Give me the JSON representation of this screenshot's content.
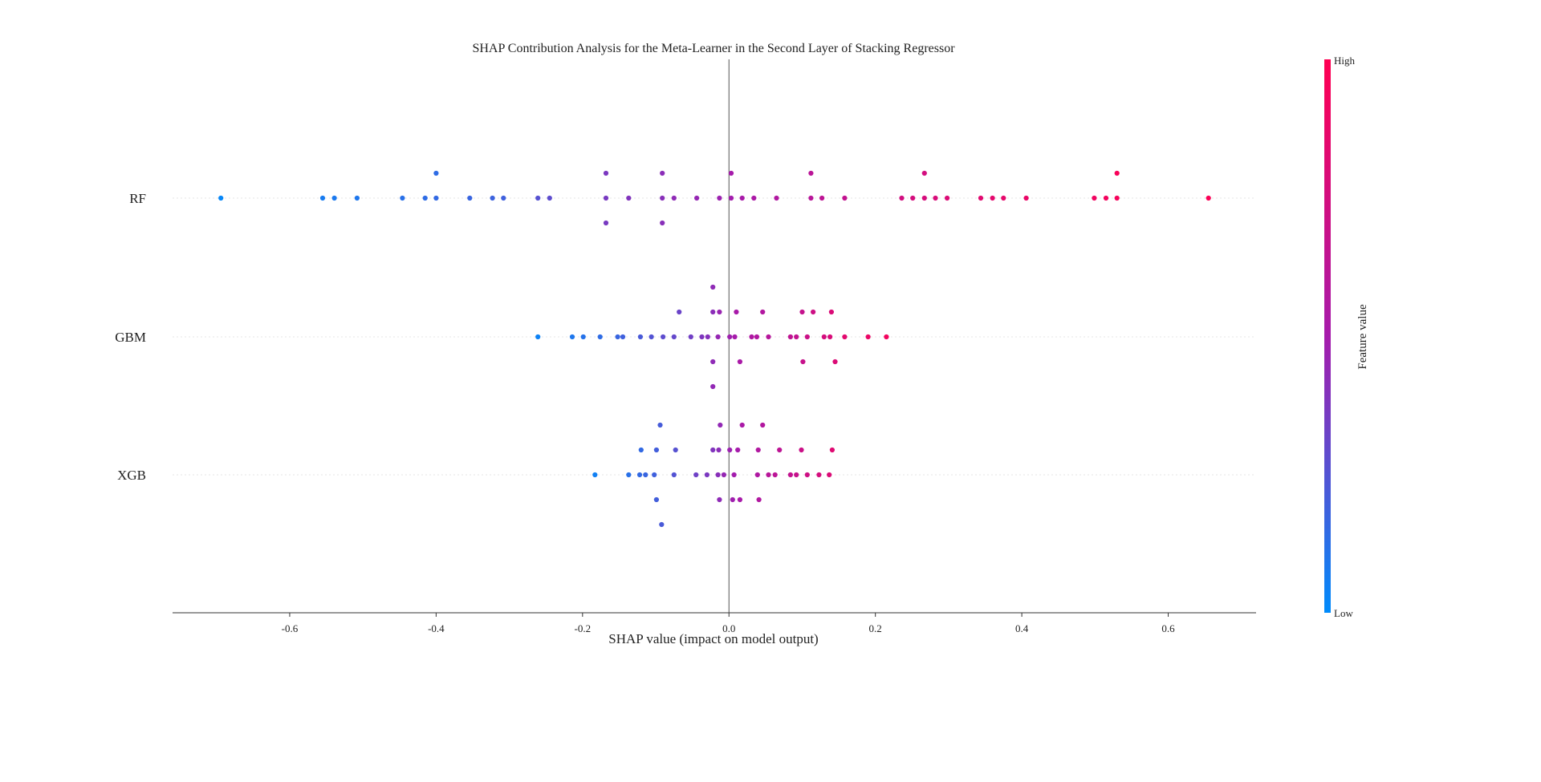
{
  "chart_data": {
    "type": "scatter",
    "title": "SHAP Contribution Analysis for the Meta-Learner in the Second Layer of Stacking Regressor",
    "xlabel": "SHAP value (impact on model output)",
    "xlim": [
      -0.76,
      0.72
    ],
    "xticks": [
      -0.6,
      -0.4,
      -0.2,
      0.0,
      0.2,
      0.4,
      0.6
    ],
    "xtick_labels": [
      "-0.6",
      "-0.4",
      "-0.2",
      "0.0",
      "0.2",
      "0.4",
      "0.6"
    ],
    "zero_line": true,
    "colorbar": {
      "label": "Feature value",
      "high_label": "High",
      "low_label": "Low",
      "low_color": "#008bfb",
      "mid_color": "#a61bab",
      "high_color": "#ff0052"
    },
    "features": [
      {
        "name": "RF",
        "points": [
          {
            "x": -0.694,
            "v": 0.02
          },
          {
            "x": -0.555,
            "v": 0.07
          },
          {
            "x": -0.539,
            "v": 0.08
          },
          {
            "x": -0.508,
            "v": 0.09
          },
          {
            "x": -0.446,
            "v": 0.12
          },
          {
            "x": -0.415,
            "v": 0.14
          },
          {
            "x": -0.4,
            "v": 0.15
          },
          {
            "x": -0.4,
            "v": 0.14
          },
          {
            "x": -0.354,
            "v": 0.17
          },
          {
            "x": -0.323,
            "v": 0.18
          },
          {
            "x": -0.308,
            "v": 0.19
          },
          {
            "x": -0.261,
            "v": 0.26
          },
          {
            "x": -0.245,
            "v": 0.28
          },
          {
            "x": -0.168,
            "v": 0.36
          },
          {
            "x": -0.168,
            "v": 0.37
          },
          {
            "x": -0.168,
            "v": 0.36
          },
          {
            "x": -0.137,
            "v": 0.39
          },
          {
            "x": -0.091,
            "v": 0.41
          },
          {
            "x": -0.091,
            "v": 0.42
          },
          {
            "x": -0.091,
            "v": 0.41
          },
          {
            "x": -0.075,
            "v": 0.43
          },
          {
            "x": -0.044,
            "v": 0.45
          },
          {
            "x": -0.013,
            "v": 0.47
          },
          {
            "x": 0.003,
            "v": 0.49
          },
          {
            "x": 0.003,
            "v": 0.5
          },
          {
            "x": 0.018,
            "v": 0.51
          },
          {
            "x": 0.034,
            "v": 0.53
          },
          {
            "x": 0.065,
            "v": 0.56
          },
          {
            "x": 0.112,
            "v": 0.6
          },
          {
            "x": 0.112,
            "v": 0.61
          },
          {
            "x": 0.127,
            "v": 0.63
          },
          {
            "x": 0.158,
            "v": 0.66
          },
          {
            "x": 0.236,
            "v": 0.74
          },
          {
            "x": 0.251,
            "v": 0.76
          },
          {
            "x": 0.267,
            "v": 0.77
          },
          {
            "x": 0.267,
            "v": 0.75
          },
          {
            "x": 0.282,
            "v": 0.78
          },
          {
            "x": 0.298,
            "v": 0.8
          },
          {
            "x": 0.344,
            "v": 0.83
          },
          {
            "x": 0.36,
            "v": 0.85
          },
          {
            "x": 0.375,
            "v": 0.86
          },
          {
            "x": 0.406,
            "v": 0.88
          },
          {
            "x": 0.499,
            "v": 0.92
          },
          {
            "x": 0.515,
            "v": 0.94
          },
          {
            "x": 0.53,
            "v": 0.95
          },
          {
            "x": 0.53,
            "v": 0.96
          },
          {
            "x": 0.655,
            "v": 0.98
          }
        ]
      },
      {
        "name": "GBM",
        "points": [
          {
            "x": -0.261,
            "v": 0.04
          },
          {
            "x": -0.214,
            "v": 0.09
          },
          {
            "x": -0.199,
            "v": 0.11
          },
          {
            "x": -0.176,
            "v": 0.14
          },
          {
            "x": -0.152,
            "v": 0.17
          },
          {
            "x": -0.145,
            "v": 0.19
          },
          {
            "x": -0.121,
            "v": 0.22
          },
          {
            "x": -0.106,
            "v": 0.25
          },
          {
            "x": -0.09,
            "v": 0.28
          },
          {
            "x": -0.075,
            "v": 0.3
          },
          {
            "x": -0.068,
            "v": 0.32
          },
          {
            "x": -0.052,
            "v": 0.34
          },
          {
            "x": -0.037,
            "v": 0.38
          },
          {
            "x": -0.029,
            "v": 0.4
          },
          {
            "x": -0.022,
            "v": 0.42
          },
          {
            "x": -0.022,
            "v": 0.43
          },
          {
            "x": -0.022,
            "v": 0.43
          },
          {
            "x": -0.022,
            "v": 0.44
          },
          {
            "x": -0.015,
            "v": 0.45
          },
          {
            "x": -0.013,
            "v": 0.46
          },
          {
            "x": 0.001,
            "v": 0.48
          },
          {
            "x": 0.008,
            "v": 0.5
          },
          {
            "x": 0.01,
            "v": 0.51
          },
          {
            "x": 0.015,
            "v": 0.52
          },
          {
            "x": 0.031,
            "v": 0.55
          },
          {
            "x": 0.038,
            "v": 0.56
          },
          {
            "x": 0.046,
            "v": 0.57
          },
          {
            "x": 0.054,
            "v": 0.59
          },
          {
            "x": 0.084,
            "v": 0.64
          },
          {
            "x": 0.092,
            "v": 0.66
          },
          {
            "x": 0.1,
            "v": 0.67
          },
          {
            "x": 0.101,
            "v": 0.68
          },
          {
            "x": 0.107,
            "v": 0.7
          },
          {
            "x": 0.115,
            "v": 0.72
          },
          {
            "x": 0.13,
            "v": 0.76
          },
          {
            "x": 0.138,
            "v": 0.78
          },
          {
            "x": 0.14,
            "v": 0.79
          },
          {
            "x": 0.145,
            "v": 0.8
          },
          {
            "x": 0.158,
            "v": 0.84
          },
          {
            "x": 0.19,
            "v": 0.89
          },
          {
            "x": 0.215,
            "v": 0.93
          }
        ]
      },
      {
        "name": "XGB",
        "points": [
          {
            "x": -0.183,
            "v": 0.05
          },
          {
            "x": -0.137,
            "v": 0.12
          },
          {
            "x": -0.122,
            "v": 0.15
          },
          {
            "x": -0.12,
            "v": 0.15
          },
          {
            "x": -0.114,
            "v": 0.17
          },
          {
            "x": -0.102,
            "v": 0.19
          },
          {
            "x": -0.099,
            "v": 0.2
          },
          {
            "x": -0.099,
            "v": 0.2
          },
          {
            "x": -0.094,
            "v": 0.21
          },
          {
            "x": -0.092,
            "v": 0.22
          },
          {
            "x": -0.075,
            "v": 0.25
          },
          {
            "x": -0.073,
            "v": 0.26
          },
          {
            "x": -0.045,
            "v": 0.33
          },
          {
            "x": -0.03,
            "v": 0.37
          },
          {
            "x": -0.022,
            "v": 0.39
          },
          {
            "x": -0.015,
            "v": 0.41
          },
          {
            "x": -0.014,
            "v": 0.42
          },
          {
            "x": -0.013,
            "v": 0.43
          },
          {
            "x": -0.012,
            "v": 0.44
          },
          {
            "x": -0.007,
            "v": 0.45
          },
          {
            "x": 0.001,
            "v": 0.47
          },
          {
            "x": 0.005,
            "v": 0.48
          },
          {
            "x": 0.007,
            "v": 0.49
          },
          {
            "x": 0.012,
            "v": 0.5
          },
          {
            "x": 0.015,
            "v": 0.51
          },
          {
            "x": 0.018,
            "v": 0.52
          },
          {
            "x": 0.039,
            "v": 0.55
          },
          {
            "x": 0.04,
            "v": 0.56
          },
          {
            "x": 0.041,
            "v": 0.56
          },
          {
            "x": 0.046,
            "v": 0.57
          },
          {
            "x": 0.054,
            "v": 0.6
          },
          {
            "x": 0.063,
            "v": 0.62
          },
          {
            "x": 0.069,
            "v": 0.63
          },
          {
            "x": 0.084,
            "v": 0.66
          },
          {
            "x": 0.092,
            "v": 0.68
          },
          {
            "x": 0.099,
            "v": 0.7
          },
          {
            "x": 0.107,
            "v": 0.72
          },
          {
            "x": 0.123,
            "v": 0.76
          },
          {
            "x": 0.137,
            "v": 0.8
          },
          {
            "x": 0.141,
            "v": 0.82
          }
        ]
      }
    ]
  }
}
